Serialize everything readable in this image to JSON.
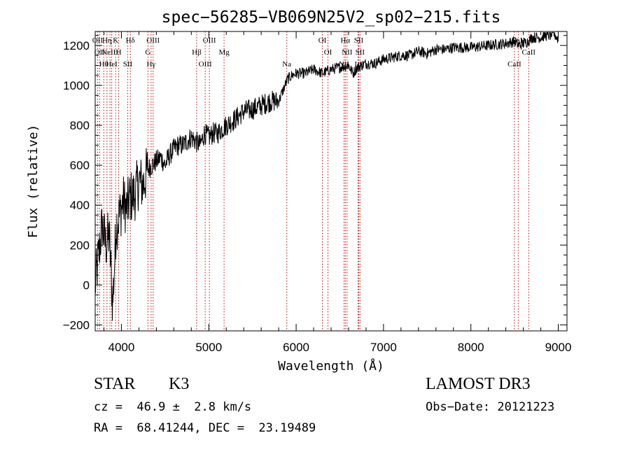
{
  "chart_data": {
    "type": "line",
    "title": "spec−56285−VB069N25V2_sp02−215.fits",
    "xlabel": "Wavelength (Å)",
    "ylabel": "Flux (relative)",
    "xlim": [
      3700,
      9100
    ],
    "ylim": [
      -230,
      1270
    ],
    "xticks": [
      4000,
      5000,
      6000,
      7000,
      8000,
      9000
    ],
    "yticks": [
      -200,
      0,
      200,
      400,
      600,
      800,
      1000,
      1200
    ],
    "x_minor_step": 200,
    "y_minor_step": 50,
    "series": [
      {
        "name": "flux",
        "x": [
          3700,
          3740,
          3780,
          3820,
          3860,
          3900,
          3940,
          3980,
          4020,
          4060,
          4100,
          4150,
          4200,
          4250,
          4300,
          4350,
          4400,
          4450,
          4500,
          4550,
          4600,
          4650,
          4700,
          4750,
          4800,
          4850,
          4900,
          4950,
          5000,
          5050,
          5100,
          5150,
          5200,
          5300,
          5400,
          5500,
          5600,
          5700,
          5800,
          5900,
          5950,
          6000,
          6100,
          6200,
          6300,
          6400,
          6500,
          6600,
          6650,
          6700,
          6800,
          6900,
          7000,
          7100,
          7200,
          7300,
          7400,
          7500,
          7600,
          7700,
          7800,
          7900,
          8000,
          8100,
          8200,
          8300,
          8400,
          8500,
          8550,
          8600,
          8650,
          8700,
          8800,
          8850,
          8900,
          8950,
          9000
        ],
        "y": [
          0,
          150,
          300,
          200,
          250,
          -100,
          300,
          350,
          420,
          380,
          440,
          450,
          520,
          500,
          580,
          600,
          620,
          640,
          600,
          650,
          680,
          700,
          700,
          720,
          740,
          720,
          700,
          760,
          740,
          760,
          760,
          780,
          800,
          830,
          870,
          880,
          900,
          920,
          920,
          1030,
          1050,
          1060,
          1060,
          1080,
          1060,
          1080,
          1090,
          1100,
          1060,
          1090,
          1110,
          1110,
          1130,
          1140,
          1150,
          1150,
          1170,
          1160,
          1180,
          1180,
          1190,
          1190,
          1190,
          1195,
          1200,
          1205,
          1210,
          1220,
          1200,
          1210,
          1220,
          1240,
          1240,
          1250,
          1250,
          1260,
          1230
        ]
      }
    ],
    "lines": [
      {
        "wavelength": 3727,
        "label": "OII"
      },
      {
        "wavelength": 3750,
        "label": "OII"
      },
      {
        "wavelength": 3798,
        "label": "Hθ"
      },
      {
        "wavelength": 3835,
        "label": "Hη"
      },
      {
        "wavelength": 3869,
        "label": "NeIII"
      },
      {
        "wavelength": 3889,
        "label": "HeI"
      },
      {
        "wavelength": 3934,
        "label": "K"
      },
      {
        "wavelength": 3969,
        "label": "H"
      },
      {
        "wavelength": 4072,
        "label": "SII"
      },
      {
        "wavelength": 4102,
        "label": "Hδ"
      },
      {
        "wavelength": 4304,
        "label": "G"
      },
      {
        "wavelength": 4340,
        "label": "Hγ"
      },
      {
        "wavelength": 4363,
        "label": "OIII"
      },
      {
        "wavelength": 4861,
        "label": "Hβ"
      },
      {
        "wavelength": 4959,
        "label": "OIII"
      },
      {
        "wavelength": 5007,
        "label": "OIII"
      },
      {
        "wavelength": 5175,
        "label": "Mg"
      },
      {
        "wavelength": 5893,
        "label": "Na"
      },
      {
        "wavelength": 6300,
        "label": "OI"
      },
      {
        "wavelength": 6364,
        "label": "OI"
      },
      {
        "wavelength": 6548,
        "label": "NII"
      },
      {
        "wavelength": 6563,
        "label": "Hα"
      },
      {
        "wavelength": 6583,
        "label": "NII"
      },
      {
        "wavelength": 6708,
        "label": "Li"
      },
      {
        "wavelength": 6716,
        "label": "SII"
      },
      {
        "wavelength": 6731,
        "label": "SII"
      },
      {
        "wavelength": 8498,
        "label": "CaII"
      },
      {
        "wavelength": 8542,
        "label": "CaII"
      },
      {
        "wavelength": 8662,
        "label": "CaII"
      }
    ],
    "line_color": "#cc0000",
    "spectrum_color": "#000000"
  },
  "info": {
    "object_class": "STAR",
    "subclass": "K3",
    "redshift_line": "cz =  46.9 ±  2.8 km/s",
    "coords_line": "RA =  68.41244, DEC =  23.19489",
    "survey": "LAMOST DR3",
    "obs_date_line": "Obs−Date: 20121223"
  }
}
